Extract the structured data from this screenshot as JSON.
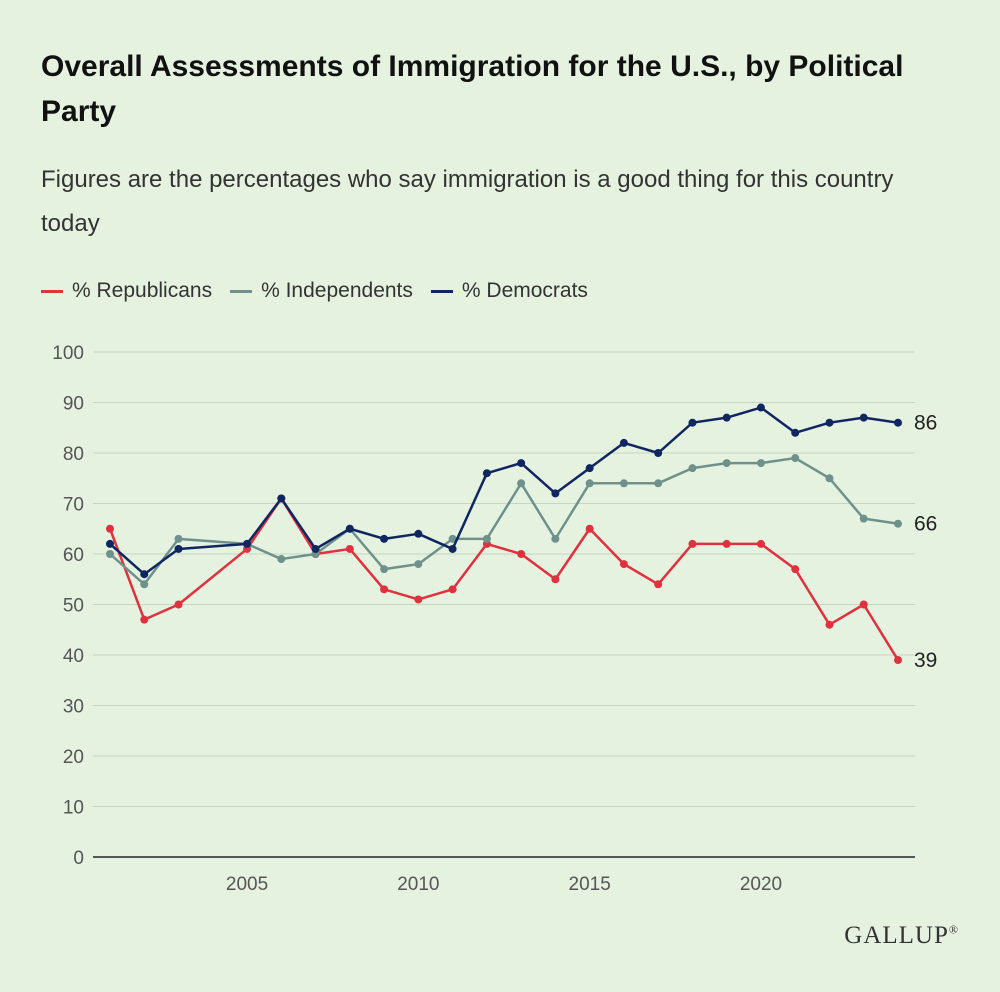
{
  "chart_data": {
    "type": "line",
    "title": "Overall Assessments of Immigration for the U.S., by Political Party",
    "subtitle": "Figures are the percentages who say immigration is a good thing for this country today",
    "xlabel": "",
    "ylabel": "",
    "x": [
      2001,
      2002,
      2003,
      2005,
      2006,
      2007,
      2008,
      2009,
      2010,
      2011,
      2012,
      2013,
      2014,
      2015,
      2016,
      2017,
      2018,
      2019,
      2020,
      2021,
      2022,
      2023,
      2024
    ],
    "xlim": [
      2001,
      2024
    ],
    "ylim": [
      0,
      100
    ],
    "yticks": [
      "0",
      "10",
      "20",
      "30",
      "40",
      "50",
      "60",
      "70",
      "80",
      "90",
      "100"
    ],
    "xticks": [
      {
        "year": 2005,
        "label": "2005"
      },
      {
        "year": 2010,
        "label": "2010"
      },
      {
        "year": 2015,
        "label": "2015"
      },
      {
        "year": 2020,
        "label": "2020"
      }
    ],
    "grid": true,
    "legend_position": "top-left",
    "series": [
      {
        "id": "rep",
        "name": "% Republicans",
        "color": "#e0313f",
        "values": [
          65,
          47,
          50,
          61,
          71,
          60,
          61,
          53,
          51,
          53,
          62,
          60,
          55,
          65,
          58,
          54,
          62,
          62,
          62,
          57,
          46,
          50,
          39
        ],
        "end_label": "39"
      },
      {
        "id": "ind",
        "name": "% Independents",
        "color": "#6f918c",
        "values": [
          60,
          54,
          63,
          62,
          59,
          60,
          65,
          57,
          58,
          63,
          63,
          74,
          63,
          74,
          74,
          74,
          77,
          78,
          78,
          79,
          75,
          67,
          66
        ],
        "end_label": "66"
      },
      {
        "id": "dem",
        "name": "% Democrats",
        "color": "#0f2660",
        "values": [
          62,
          56,
          61,
          62,
          71,
          61,
          65,
          63,
          64,
          61,
          76,
          78,
          72,
          77,
          82,
          80,
          86,
          87,
          89,
          84,
          86,
          87,
          86
        ],
        "end_label": "86"
      }
    ]
  },
  "brand": {
    "logo_text": "GALLUP",
    "trademark": "®"
  }
}
